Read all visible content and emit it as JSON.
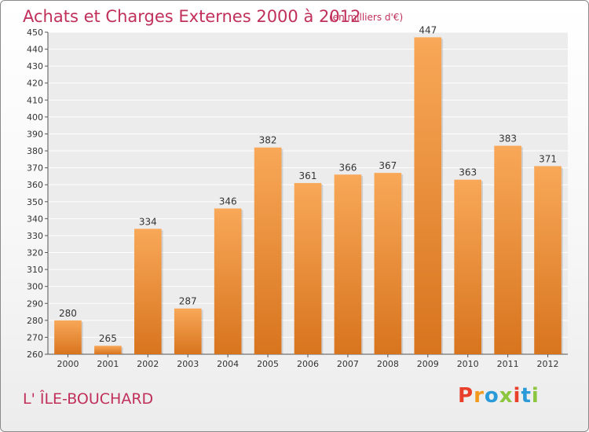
{
  "header": {
    "title": "Achats et Charges Externes 2000 à 2012",
    "subtitle": "(en milliers d'€)"
  },
  "footer": {
    "town": "L' ÎLE-BOUCHARD",
    "logo_text": "Proxiti"
  },
  "colors": {
    "title": "#c0305a",
    "bar_top": "#f8a858",
    "bar_bottom": "#d8741e",
    "logo_letters": [
      "#e8402a",
      "#f29a1c",
      "#2a9ad8",
      "#8cc63e",
      "#e8402a",
      "#2a9ad8",
      "#8cc63e"
    ]
  },
  "chart_data": {
    "type": "bar",
    "title": "Achats et Charges Externes 2000 à 2012",
    "subtitle": "(en milliers d'€)",
    "categories": [
      "2000",
      "2001",
      "2002",
      "2003",
      "2004",
      "2005",
      "2006",
      "2007",
      "2008",
      "2009",
      "2010",
      "2011",
      "2012"
    ],
    "values": [
      280,
      265,
      334,
      287,
      346,
      382,
      361,
      366,
      367,
      447,
      363,
      383,
      371
    ],
    "ylim": [
      260,
      450
    ],
    "ytick_step": 10,
    "xlabel": "",
    "ylabel": "",
    "grid": true,
    "data_labels": true
  }
}
